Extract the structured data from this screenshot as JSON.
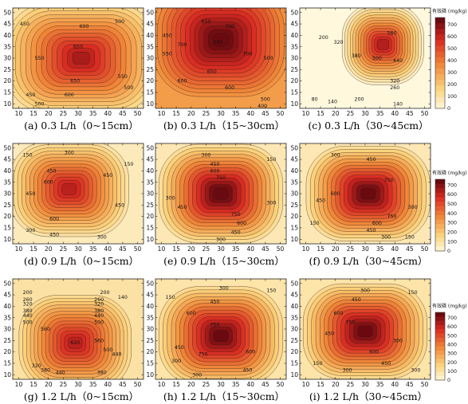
{
  "chart_data": {
    "type": "heatmap",
    "x_ticks": [
      10,
      15,
      20,
      25,
      30,
      35,
      40,
      45,
      50
    ],
    "y_ticks": [
      10,
      15,
      20,
      25,
      30,
      35,
      40,
      45,
      50
    ],
    "xlim": [
      8,
      52
    ],
    "ylim": [
      8,
      52
    ],
    "colorbar": {
      "title": "有效磷 (mg/kg)",
      "ticks": [
        0,
        100,
        200,
        300,
        400,
        500,
        600,
        700
      ],
      "range": [
        0,
        760
      ]
    },
    "colors": {
      "low": "#fffce8",
      "mid_low": "#fbd27c",
      "mid": "#f08a3a",
      "high": "#d82a22",
      "max": "#6a0a10"
    },
    "panels": [
      {
        "caption": "(a) 0.3 L/h（0~15cm）",
        "peak_x": 31,
        "peak_y": 30,
        "peak": 665,
        "spread_x": 0.62,
        "spread_y": 0.58,
        "min": 120,
        "labels": [
          {
            "t": "600",
            "x": 32,
            "y": 44
          },
          {
            "t": "650",
            "x": 30,
            "y": 35
          },
          {
            "t": "650",
            "x": 29,
            "y": 20
          },
          {
            "t": "600",
            "x": 27,
            "y": 14
          },
          {
            "t": "550",
            "x": 17,
            "y": 30
          },
          {
            "t": "500",
            "x": 44,
            "y": 46
          },
          {
            "t": "550",
            "x": 45,
            "y": 22
          },
          {
            "t": "500",
            "x": 47,
            "y": 17
          },
          {
            "t": "450",
            "x": 12,
            "y": 45
          },
          {
            "t": "450",
            "x": 14,
            "y": 14
          },
          {
            "t": "500",
            "x": 17,
            "y": 10
          }
        ]
      },
      {
        "caption": "(b) 0.3 L/h（15~30cm）",
        "peak_x": 30,
        "peak_y": 38,
        "peak": 780,
        "spread_x": 0.55,
        "spread_y": 0.6,
        "min": 330,
        "labels": [
          {
            "t": "650",
            "x": 25,
            "y": 46
          },
          {
            "t": "700",
            "x": 33,
            "y": 44
          },
          {
            "t": "750",
            "x": 29,
            "y": 37
          },
          {
            "t": "700",
            "x": 17,
            "y": 36
          },
          {
            "t": "700",
            "x": 39,
            "y": 32
          },
          {
            "t": "600",
            "x": 17,
            "y": 20
          },
          {
            "t": "650",
            "x": 27,
            "y": 24
          },
          {
            "t": "600",
            "x": 33,
            "y": 17
          },
          {
            "t": "500",
            "x": 45,
            "y": 12
          },
          {
            "t": "450",
            "x": 12,
            "y": 40
          },
          {
            "t": "550",
            "x": 12,
            "y": 32
          },
          {
            "t": "400",
            "x": 44,
            "y": 9
          },
          {
            "t": "500",
            "x": 46,
            "y": 30
          }
        ]
      },
      {
        "caption": "(c) 0.3 L/h（30~45cm）",
        "peak_x": 36,
        "peak_y": 36,
        "peak": 650,
        "spread_x": 0.32,
        "spread_y": 0.42,
        "min": 20,
        "labels": [
          {
            "t": "200",
            "x": 16,
            "y": 39
          },
          {
            "t": "320",
            "x": 21,
            "y": 37
          },
          {
            "t": "500",
            "x": 34,
            "y": 30
          },
          {
            "t": "380",
            "x": 27,
            "y": 31
          },
          {
            "t": "440",
            "x": 41,
            "y": 29
          },
          {
            "t": "560",
            "x": 39,
            "y": 41
          },
          {
            "t": "320",
            "x": 40,
            "y": 20
          },
          {
            "t": "260",
            "x": 40,
            "y": 17
          },
          {
            "t": "140",
            "x": 19,
            "y": 11
          },
          {
            "t": "80",
            "x": 13,
            "y": 12
          },
          {
            "t": "200",
            "x": 28,
            "y": 12
          },
          {
            "t": "140",
            "x": 41,
            "y": 10
          }
        ]
      },
      {
        "caption": "(d) 0.9 L/h（0~15cm）",
        "peak_x": 27,
        "peak_y": 32,
        "peak": 640,
        "spread_x": 0.48,
        "spread_y": 0.5,
        "min": 80,
        "labels": [
          {
            "t": "300",
            "x": 27,
            "y": 48
          },
          {
            "t": "150",
            "x": 13,
            "y": 47
          },
          {
            "t": "450",
            "x": 21,
            "y": 40
          },
          {
            "t": "600",
            "x": 20,
            "y": 35
          },
          {
            "t": "450",
            "x": 14,
            "y": 30
          },
          {
            "t": "450",
            "x": 40,
            "y": 38
          },
          {
            "t": "450",
            "x": 44,
            "y": 25
          },
          {
            "t": "600",
            "x": 22,
            "y": 19
          },
          {
            "t": "450",
            "x": 22,
            "y": 12
          },
          {
            "t": "300",
            "x": 14,
            "y": 14
          },
          {
            "t": "300",
            "x": 38,
            "y": 11
          },
          {
            "t": "150",
            "x": 47,
            "y": 43
          }
        ]
      },
      {
        "caption": "(e) 0.9 L/h（15~30cm）",
        "peak_x": 30,
        "peak_y": 30,
        "peak": 790,
        "spread_x": 0.5,
        "spread_y": 0.52,
        "min": 90,
        "labels": [
          {
            "t": "300",
            "x": 25,
            "y": 47
          },
          {
            "t": "450",
            "x": 28,
            "y": 43
          },
          {
            "t": "600",
            "x": 28,
            "y": 40
          },
          {
            "t": "750",
            "x": 30,
            "y": 37
          },
          {
            "t": "750",
            "x": 35,
            "y": 21
          },
          {
            "t": "600",
            "x": 37,
            "y": 17
          },
          {
            "t": "450",
            "x": 35,
            "y": 13
          },
          {
            "t": "300",
            "x": 30,
            "y": 10
          },
          {
            "t": "300",
            "x": 13,
            "y": 28
          },
          {
            "t": "450",
            "x": 17,
            "y": 24
          },
          {
            "t": "300",
            "x": 47,
            "y": 26
          },
          {
            "t": "150",
            "x": 47,
            "y": 45
          }
        ]
      },
      {
        "caption": "(f) 0.9 L/h（30~45cm）",
        "peak_x": 31,
        "peak_y": 30,
        "peak": 780,
        "spread_x": 0.5,
        "spread_y": 0.5,
        "min": 90,
        "labels": [
          {
            "t": "300",
            "x": 20,
            "y": 47
          },
          {
            "t": "450",
            "x": 32,
            "y": 45
          },
          {
            "t": "750",
            "x": 38,
            "y": 36
          },
          {
            "t": "600",
            "x": 20,
            "y": 30
          },
          {
            "t": "450",
            "x": 15,
            "y": 27
          },
          {
            "t": "600",
            "x": 34,
            "y": 17
          },
          {
            "t": "750",
            "x": 39,
            "y": 20
          },
          {
            "t": "450",
            "x": 32,
            "y": 14
          },
          {
            "t": "300",
            "x": 37,
            "y": 11
          },
          {
            "t": "150",
            "x": 13,
            "y": 17
          },
          {
            "t": "300",
            "x": 46,
            "y": 24
          },
          {
            "t": "150",
            "x": 45,
            "y": 11
          }
        ]
      },
      {
        "caption": "(g) 1.2 L/h（0~15cm）",
        "peak_x": 29,
        "peak_y": 24,
        "peak": 640,
        "spread_x": 0.45,
        "spread_y": 0.5,
        "min": 120,
        "labels": [
          {
            "t": "200",
            "x": 13,
            "y": 46
          },
          {
            "t": "260",
            "x": 13,
            "y": 43
          },
          {
            "t": "320",
            "x": 13,
            "y": 41
          },
          {
            "t": "380",
            "x": 13,
            "y": 38
          },
          {
            "t": "440",
            "x": 13,
            "y": 36
          },
          {
            "t": "500",
            "x": 13,
            "y": 33
          },
          {
            "t": "260",
            "x": 37,
            "y": 43
          },
          {
            "t": "320",
            "x": 37,
            "y": 41
          },
          {
            "t": "380",
            "x": 37,
            "y": 38
          },
          {
            "t": "440",
            "x": 37,
            "y": 36
          },
          {
            "t": "500",
            "x": 37,
            "y": 33
          },
          {
            "t": "200",
            "x": 39,
            "y": 46
          },
          {
            "t": "140",
            "x": 45,
            "y": 44
          },
          {
            "t": "560",
            "x": 19,
            "y": 30
          },
          {
            "t": "620",
            "x": 29,
            "y": 24
          },
          {
            "t": "560",
            "x": 37,
            "y": 25
          },
          {
            "t": "500",
            "x": 40,
            "y": 21
          },
          {
            "t": "440",
            "x": 43,
            "y": 19
          },
          {
            "t": "380",
            "x": 19,
            "y": 12
          },
          {
            "t": "440",
            "x": 24,
            "y": 11
          },
          {
            "t": "320",
            "x": 16,
            "y": 14
          },
          {
            "t": "380",
            "x": 38,
            "y": 11
          }
        ]
      },
      {
        "caption": "(h) 1.2 L/h（15~30cm）",
        "peak_x": 30,
        "peak_y": 27,
        "peak": 770,
        "spread_x": 0.5,
        "spread_y": 0.52,
        "min": 110,
        "labels": [
          {
            "t": "300",
            "x": 31,
            "y": 48
          },
          {
            "t": "450",
            "x": 28,
            "y": 42
          },
          {
            "t": "600",
            "x": 20,
            "y": 37
          },
          {
            "t": "750",
            "x": 28,
            "y": 32
          },
          {
            "t": "750",
            "x": 24,
            "y": 19
          },
          {
            "t": "600",
            "x": 40,
            "y": 20
          },
          {
            "t": "450",
            "x": 39,
            "y": 12
          },
          {
            "t": "300",
            "x": 22,
            "y": 10
          },
          {
            "t": "450",
            "x": 16,
            "y": 22
          },
          {
            "t": "300",
            "x": 15,
            "y": 16
          },
          {
            "t": "150",
            "x": 13,
            "y": 44
          },
          {
            "t": "150",
            "x": 47,
            "y": 47
          }
        ]
      },
      {
        "caption": "(i) 1.2 L/h（30~45cm）",
        "peak_x": 30,
        "peak_y": 29,
        "peak": 770,
        "spread_x": 0.5,
        "spread_y": 0.5,
        "min": 110,
        "labels": [
          {
            "t": "300",
            "x": 30,
            "y": 47
          },
          {
            "t": "450",
            "x": 27,
            "y": 43
          },
          {
            "t": "600",
            "x": 21,
            "y": 37
          },
          {
            "t": "750",
            "x": 25,
            "y": 33
          },
          {
            "t": "450",
            "x": 18,
            "y": 28
          },
          {
            "t": "600",
            "x": 33,
            "y": 20
          },
          {
            "t": "450",
            "x": 37,
            "y": 15
          },
          {
            "t": "300",
            "x": 41,
            "y": 25
          },
          {
            "t": "300",
            "x": 24,
            "y": 12
          },
          {
            "t": "150",
            "x": 14,
            "y": 15
          },
          {
            "t": "150",
            "x": 46,
            "y": 46
          },
          {
            "t": "300",
            "x": 47,
            "y": 12
          }
        ]
      }
    ]
  }
}
